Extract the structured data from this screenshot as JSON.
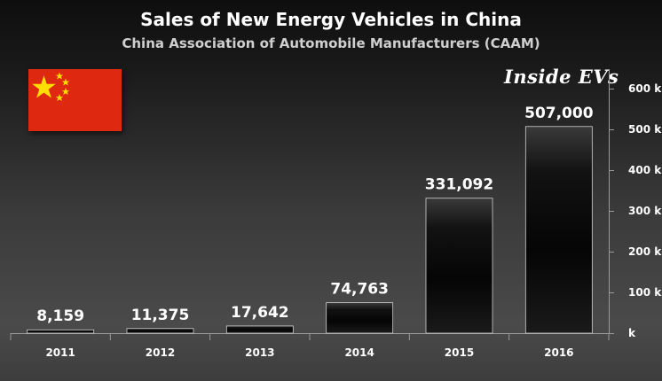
{
  "title": "Sales of New Energy Vehicles in China",
  "subtitle": "China Association of Automobile Manufacturers (CAAM)",
  "brand": "Inside EVs",
  "flag": {
    "colors": {
      "red": "#de2910",
      "yellow": "#ffde00"
    }
  },
  "colors": {
    "bar_top": "#3a3a3a",
    "bar_mid": "#050505",
    "bar_edge": "#cfcfcf",
    "text": "#ffffff"
  },
  "chart_data": {
    "type": "bar",
    "categories": [
      "2011",
      "2012",
      "2013",
      "2014",
      "2015",
      "2016"
    ],
    "values": [
      8159,
      11375,
      17642,
      74763,
      331092,
      507000
    ],
    "data_labels": [
      "8,159",
      "11,375",
      "17,642",
      "74,763",
      "331,092",
      "507,000"
    ],
    "y_ticks": [
      0,
      100000,
      200000,
      300000,
      400000,
      500000,
      600000
    ],
    "y_tick_labels": [
      "k",
      "100 k",
      "200 k",
      "300 k",
      "400 k",
      "500 k",
      "600 k"
    ],
    "ylim": [
      0,
      600000
    ],
    "y_axis_position": "right",
    "grid": false,
    "legend": "none"
  }
}
